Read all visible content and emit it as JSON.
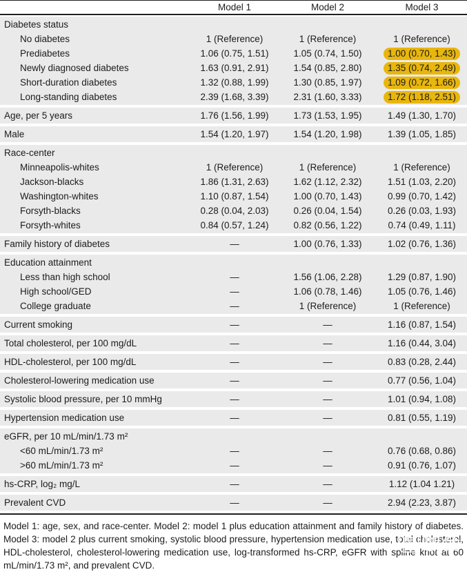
{
  "table": {
    "columns": [
      "Model 1",
      "Model 2",
      "Model 3"
    ],
    "sections": [
      {
        "rows": [
          {
            "label": "Diabetes status",
            "indent": false,
            "values": [
              "",
              "",
              ""
            ]
          },
          {
            "label": "No diabetes",
            "indent": true,
            "values": [
              "1 (Reference)",
              "1 (Reference)",
              "1 (Reference)"
            ]
          },
          {
            "label": "Prediabetes",
            "indent": true,
            "values": [
              "1.06 (0.75, 1.51)",
              "1.05 (0.74, 1.50)",
              "1.00 (0.70, 1.43)"
            ],
            "highlight": [
              false,
              false,
              true
            ]
          },
          {
            "label": "Newly diagnosed diabetes",
            "indent": true,
            "values": [
              "1.63 (0.91, 2.91)",
              "1.54 (0.85, 2.80)",
              "1.35 (0.74, 2.49)"
            ],
            "highlight": [
              false,
              false,
              true
            ]
          },
          {
            "label": "Short-duration diabetes",
            "indent": true,
            "values": [
              "1.32 (0.88, 1.99)",
              "1.30 (0.85, 1.97)",
              "1.09 (0.72, 1.66)"
            ],
            "highlight": [
              false,
              false,
              true
            ]
          },
          {
            "label": "Long-standing diabetes",
            "indent": true,
            "values": [
              "2.39 (1.68, 3.39)",
              "2.31 (1.60, 3.33)",
              "1.72 (1.18, 2.51)"
            ],
            "highlight": [
              false,
              false,
              true
            ]
          }
        ]
      },
      {
        "rows": [
          {
            "label": "Age, per 5 years",
            "indent": false,
            "values": [
              "1.76 (1.56, 1.99)",
              "1.73 (1.53, 1.95)",
              "1.49 (1.30, 1.70)"
            ]
          }
        ]
      },
      {
        "rows": [
          {
            "label": "Male",
            "indent": false,
            "values": [
              "1.54 (1.20, 1.97)",
              "1.54 (1.20, 1.98)",
              "1.39 (1.05, 1.85)"
            ]
          }
        ]
      },
      {
        "rows": [
          {
            "label": "Race-center",
            "indent": false,
            "values": [
              "",
              "",
              ""
            ]
          },
          {
            "label": "Minneapolis-whites",
            "indent": true,
            "values": [
              "1 (Reference)",
              "1 (Reference)",
              "1 (Reference)"
            ]
          },
          {
            "label": "Jackson-blacks",
            "indent": true,
            "values": [
              "1.86 (1.31, 2.63)",
              "1.62 (1.12, 2.32)",
              "1.51 (1.03, 2.20)"
            ]
          },
          {
            "label": "Washington-whites",
            "indent": true,
            "values": [
              "1.10 (0.87, 1.54)",
              "1.00 (0.70, 1.43)",
              "0.99 (0.70, 1.42)"
            ]
          },
          {
            "label": "Forsyth-blacks",
            "indent": true,
            "values": [
              "0.28 (0.04, 2.03)",
              "0.26 (0.04, 1.54)",
              "0.26 (0.03, 1.93)"
            ]
          },
          {
            "label": "Forsyth-whites",
            "indent": true,
            "values": [
              "0.84 (0.57, 1.24)",
              "0.82 (0.56, 1.22)",
              "0.74 (0.49, 1.11)"
            ]
          }
        ]
      },
      {
        "rows": [
          {
            "label": "Family history of diabetes",
            "indent": false,
            "values": [
              "—",
              "1.00 (0.76, 1.33)",
              "1.02 (0.76, 1.36)"
            ]
          }
        ]
      },
      {
        "rows": [
          {
            "label": "Education attainment",
            "indent": false,
            "values": [
              "",
              "",
              ""
            ]
          },
          {
            "label": "Less than high school",
            "indent": true,
            "values": [
              "—",
              "1.56 (1.06, 2.28)",
              "1.29 (0.87, 1.90)"
            ]
          },
          {
            "label": "High school/GED",
            "indent": true,
            "values": [
              "—",
              "1.06 (0.78, 1.46)",
              "1.05 (0.76, 1.46)"
            ]
          },
          {
            "label": "College graduate",
            "indent": true,
            "values": [
              "—",
              "1 (Reference)",
              "1 (Reference)"
            ]
          }
        ]
      },
      {
        "rows": [
          {
            "label": "Current smoking",
            "indent": false,
            "values": [
              "—",
              "—",
              "1.16 (0.87, 1.54)"
            ]
          }
        ]
      },
      {
        "rows": [
          {
            "label": "Total cholesterol, per 100 mg/dL",
            "indent": false,
            "values": [
              "—",
              "—",
              "1.16 (0.44, 3.04)"
            ]
          }
        ]
      },
      {
        "rows": [
          {
            "label": "HDL-cholesterol, per 100 mg/dL",
            "indent": false,
            "values": [
              "—",
              "—",
              "0.83 (0.28, 2.44)"
            ]
          }
        ]
      },
      {
        "rows": [
          {
            "label": "Cholesterol-lowering medication use",
            "indent": false,
            "values": [
              "—",
              "—",
              "0.77 (0.56, 1.04)"
            ]
          }
        ]
      },
      {
        "rows": [
          {
            "label": "Systolic blood pressure, per 10 mmHg",
            "indent": false,
            "values": [
              "—",
              "—",
              "1.01 (0.94, 1.08)"
            ]
          }
        ]
      },
      {
        "rows": [
          {
            "label": "Hypertension medication use",
            "indent": false,
            "values": [
              "—",
              "—",
              "0.81 (0.55, 1.19)"
            ]
          }
        ]
      },
      {
        "rows": [
          {
            "label": "eGFR, per 10 mL/min/1.73 m²",
            "indent": false,
            "values": [
              "",
              "",
              ""
            ]
          },
          {
            "label": "<60 mL/min/1.73 m²",
            "indent": true,
            "values": [
              "—",
              "—",
              "0.76 (0.68, 0.86)"
            ]
          },
          {
            "label": ">60 mL/min/1.73 m²",
            "indent": true,
            "values": [
              "—",
              "—",
              "0.91 (0.76, 1.07)"
            ]
          }
        ]
      },
      {
        "rows": [
          {
            "label": "hs-CRP, log₂ mg/L",
            "indent": false,
            "values": [
              "—",
              "—",
              "1.12 (1.04 1.21)"
            ]
          }
        ]
      },
      {
        "rows": [
          {
            "label": "Prevalent CVD",
            "indent": false,
            "values": [
              "—",
              "—",
              "2.94 (2.23, 3.87)"
            ]
          }
        ]
      }
    ]
  },
  "footnote": "Model 1: age, sex, and race-center. Model 2: model 1 plus education attainment and family history of diabetes. Model 3: model 2 plus current smoking, systolic blood pressure, hypertension medication use, total cholesterol, HDL-cholesterol, cholesterol-lowering medication use, log-transformed hs-CRP, eGFR with spline knot at 60 mL/min/1.73 m², and prevalent CVD.",
  "watermark": {
    "logo_char": "医",
    "name": "咖会",
    "subtext": "MEDIECO GROUP"
  },
  "colors": {
    "highlight": "#e8b60d",
    "row_background": "#eaeaea",
    "rule": "#1f1f1f",
    "text": "#1b1b1b",
    "watermark": "#ffffff"
  }
}
